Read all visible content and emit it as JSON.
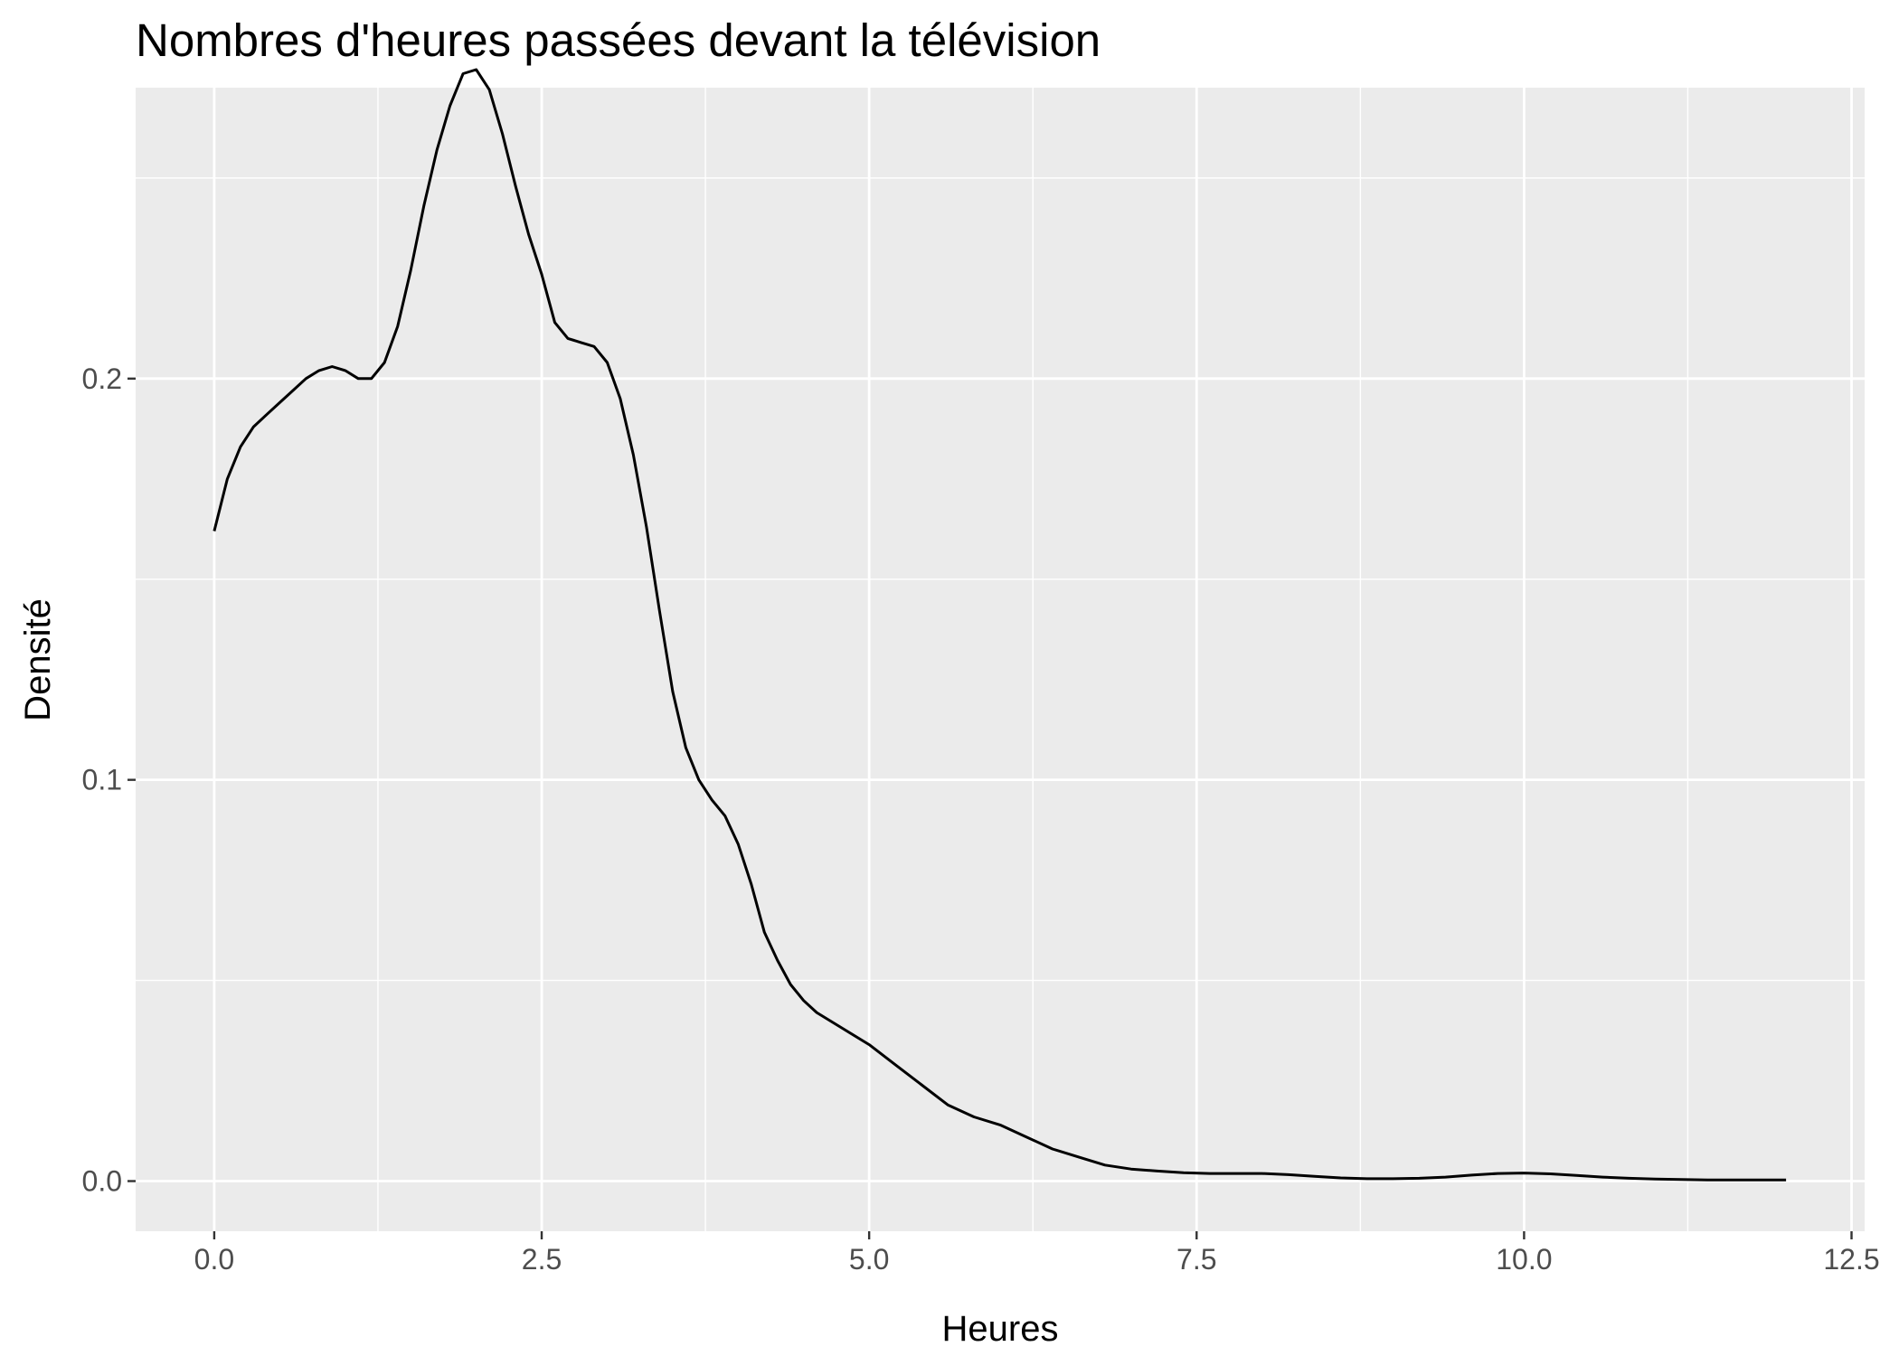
{
  "chart_data": {
    "type": "area",
    "title": "Nombres d'heures passées devant la télévision",
    "xlabel": "Heures",
    "ylabel": "Densité",
    "xlim": [
      -0.6,
      12.6
    ],
    "ylim": [
      -0.0125,
      0.2725
    ],
    "x_ticks": [
      {
        "value": 0,
        "label": "0.0"
      },
      {
        "value": 2.5,
        "label": "2.5"
      },
      {
        "value": 5,
        "label": "5.0"
      },
      {
        "value": 7.5,
        "label": "7.5"
      },
      {
        "value": 10,
        "label": "10.0"
      },
      {
        "value": 12.5,
        "label": "12.5"
      }
    ],
    "y_ticks": [
      {
        "value": 0,
        "label": "0.0"
      },
      {
        "value": 0.1,
        "label": "0.1"
      },
      {
        "value": 0.2,
        "label": "0.2"
      }
    ],
    "x_minor_ticks": [
      1.25,
      3.75,
      6.25,
      8.75,
      11.25
    ],
    "y_minor_ticks": [
      0.05,
      0.15,
      0.25
    ],
    "grid": true,
    "legend": "none",
    "colors": {
      "panel_background": "#EBEBEB",
      "grid_line": "#FFFFFF",
      "curve": "#000000",
      "tick_mark": "#333333",
      "tick_label": "#4D4D4D",
      "title": "#000000"
    },
    "series": [
      {
        "x": [
          0.0,
          0.1,
          0.2,
          0.3,
          0.4,
          0.5,
          0.6,
          0.7,
          0.8,
          0.9,
          1.0,
          1.1,
          1.2,
          1.3,
          1.4,
          1.5,
          1.6,
          1.7,
          1.8,
          1.9,
          2.0,
          2.1,
          2.2,
          2.3,
          2.4,
          2.5,
          2.6,
          2.7,
          2.8,
          2.9,
          3.0,
          3.1,
          3.2,
          3.3,
          3.4,
          3.5,
          3.6,
          3.7,
          3.8,
          3.9,
          4.0,
          4.1,
          4.2,
          4.3,
          4.4,
          4.5,
          4.6,
          4.8,
          5.0,
          5.2,
          5.4,
          5.6,
          5.8,
          6.0,
          6.2,
          6.4,
          6.6,
          6.8,
          7.0,
          7.2,
          7.4,
          7.6,
          7.8,
          8.0,
          8.2,
          8.4,
          8.6,
          8.8,
          9.0,
          9.2,
          9.4,
          9.6,
          9.8,
          10.0,
          10.2,
          10.4,
          10.6,
          10.8,
          11.0,
          11.2,
          11.4,
          11.6,
          11.8,
          12.0
        ],
        "y": [
          0.162,
          0.175,
          0.183,
          0.188,
          0.191,
          0.194,
          0.197,
          0.2,
          0.202,
          0.203,
          0.202,
          0.2,
          0.2,
          0.204,
          0.213,
          0.227,
          0.243,
          0.257,
          0.268,
          0.276,
          0.277,
          0.272,
          0.261,
          0.248,
          0.236,
          0.226,
          0.214,
          0.21,
          0.209,
          0.208,
          0.204,
          0.195,
          0.181,
          0.163,
          0.142,
          0.122,
          0.108,
          0.1,
          0.095,
          0.091,
          0.084,
          0.074,
          0.062,
          0.055,
          0.049,
          0.045,
          0.042,
          0.038,
          0.034,
          0.029,
          0.024,
          0.019,
          0.016,
          0.014,
          0.011,
          0.008,
          0.006,
          0.004,
          0.003,
          0.0025,
          0.0021,
          0.0019,
          0.0019,
          0.0019,
          0.0016,
          0.0012,
          0.0008,
          0.0006,
          0.0006,
          0.0007,
          0.001,
          0.0015,
          0.0019,
          0.002,
          0.0018,
          0.0014,
          0.001,
          0.0007,
          0.0005,
          0.0004,
          0.0003,
          0.0003,
          0.0003,
          0.0003
        ]
      }
    ]
  }
}
